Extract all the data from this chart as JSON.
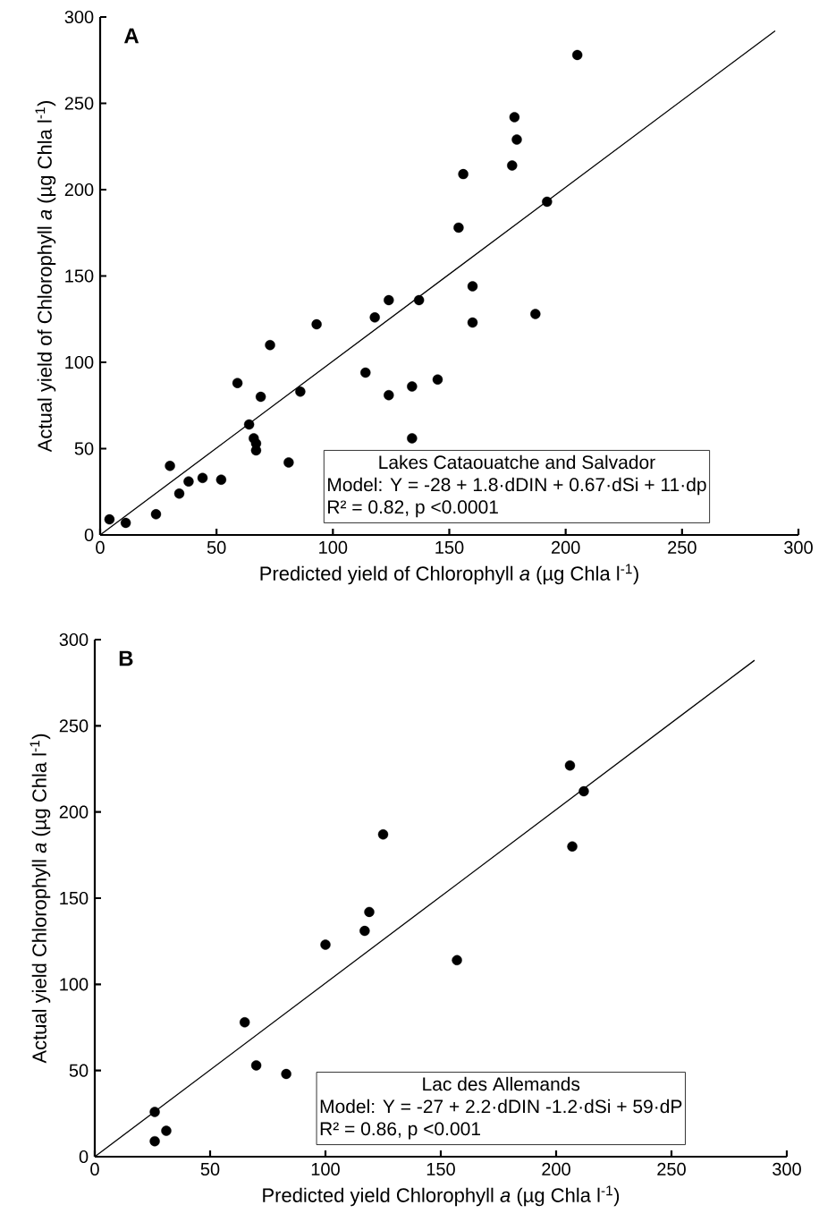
{
  "chart_data": [
    {
      "type": "scatter",
      "xlabel": "Predicted yield of Chlorophyll *a* (µg Chla l$^{-1}$)",
      "ylabel": "Actual yield of Chlorophyll *a* (µg Chla l$^{-1}$)",
      "annotations": [
        "A",
        "Lakes Cataouatche and Salvador",
        "Model: Y = -28 + 1.8·dDIN + 0.67·dSi + 11·dp",
        "R² = 0.82, p <0.0001"
      ],
      "xlim": [
        0,
        300
      ],
      "ylim": [
        0,
        300
      ],
      "xticks": [
        0,
        50,
        100,
        150,
        200,
        250,
        300
      ],
      "yticks": [
        0,
        50,
        100,
        150,
        200,
        250,
        300
      ],
      "marker": "circle",
      "series": [
        {
          "color": "#000000",
          "x": [
            4,
            11,
            24,
            30,
            34,
            38,
            44,
            52,
            59,
            64,
            66,
            67,
            67,
            69,
            73,
            81,
            86,
            93,
            114,
            118,
            124,
            124,
            134,
            134,
            137,
            145,
            154,
            156,
            160,
            160,
            177,
            178,
            179,
            187,
            192,
            205
          ],
          "values": [
            9,
            7,
            12,
            40,
            24,
            31,
            33,
            32,
            88,
            64,
            56,
            53,
            49,
            80,
            110,
            42,
            83,
            122,
            94,
            126,
            81,
            136,
            86,
            56,
            136,
            90,
            178,
            209,
            144,
            123,
            214,
            242,
            229,
            128,
            193,
            278
          ]
        },
        {
          "type": "line",
          "color": "#000000",
          "marker": "none",
          "line_style": "solid",
          "x": [
            0,
            290
          ],
          "values": [
            0,
            292
          ]
        }
      ]
    },
    {
      "type": "scatter",
      "xlabel": "Predicted yield Chlorophyll *a* (µg Chla l$^{-1}$)",
      "ylabel": "Actual yield Chlorophyll *a* (µg Chla l$^{-1}$)",
      "annotations": [
        "B",
        "Lac des Allemands",
        "Model: Y = -27 + 2.2·dDIN -1.2·dSi + 59·dP",
        "R² = 0.86, p <0.001"
      ],
      "xlim": [
        0,
        300
      ],
      "ylim": [
        0,
        300
      ],
      "xticks": [
        0,
        50,
        100,
        150,
        200,
        250,
        300
      ],
      "yticks": [
        0,
        50,
        100,
        150,
        200,
        250,
        300
      ],
      "marker": "circle",
      "series": [
        {
          "color": "#000000",
          "x": [
            26,
            26,
            31,
            65,
            70,
            83,
            100,
            117,
            119,
            125,
            157,
            206,
            207,
            212
          ],
          "values": [
            26,
            9,
            15,
            78,
            53,
            48,
            123,
            131,
            142,
            187,
            114,
            227,
            180,
            212
          ]
        },
        {
          "type": "line",
          "color": "#000000",
          "marker": "none",
          "line_style": "solid",
          "x": [
            0,
            286
          ],
          "values": [
            0,
            288
          ]
        }
      ]
    }
  ]
}
